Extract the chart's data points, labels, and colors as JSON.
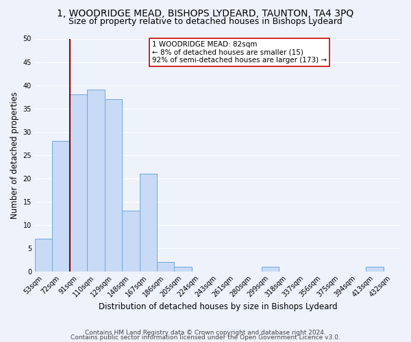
{
  "title": "1, WOODRIDGE MEAD, BISHOPS LYDEARD, TAUNTON, TA4 3PQ",
  "subtitle": "Size of property relative to detached houses in Bishops Lydeard",
  "xlabel": "Distribution of detached houses by size in Bishops Lydeard",
  "ylabel": "Number of detached properties",
  "bar_labels": [
    "53sqm",
    "72sqm",
    "91sqm",
    "110sqm",
    "129sqm",
    "148sqm",
    "167sqm",
    "186sqm",
    "205sqm",
    "224sqm",
    "243sqm",
    "261sqm",
    "280sqm",
    "299sqm",
    "318sqm",
    "337sqm",
    "356sqm",
    "375sqm",
    "394sqm",
    "413sqm",
    "432sqm"
  ],
  "bar_values": [
    7,
    28,
    38,
    39,
    37,
    13,
    21,
    2,
    1,
    0,
    0,
    0,
    0,
    1,
    0,
    0,
    0,
    0,
    0,
    1,
    0
  ],
  "bar_color": "#c8daf5",
  "bar_edge_color": "#6fa8d8",
  "ylim": [
    0,
    50
  ],
  "yticks": [
    0,
    5,
    10,
    15,
    20,
    25,
    30,
    35,
    40,
    45,
    50
  ],
  "vline_x": 1.5,
  "vline_color": "#8b0000",
  "annotation_box_text": "1 WOODRIDGE MEAD: 82sqm\n← 8% of detached houses are smaller (15)\n92% of semi-detached houses are larger (173) →",
  "annotation_box_color": "#ffffff",
  "annotation_box_edge_color": "#cc0000",
  "footer_line1": "Contains HM Land Registry data © Crown copyright and database right 2024.",
  "footer_line2": "Contains public sector information licensed under the Open Government Licence v3.0.",
  "background_color": "#eef2fb",
  "grid_color": "#ffffff",
  "title_fontsize": 10,
  "subtitle_fontsize": 9,
  "axis_label_fontsize": 8.5,
  "tick_fontsize": 7,
  "footer_fontsize": 6.5,
  "ann_fontsize": 7.5
}
